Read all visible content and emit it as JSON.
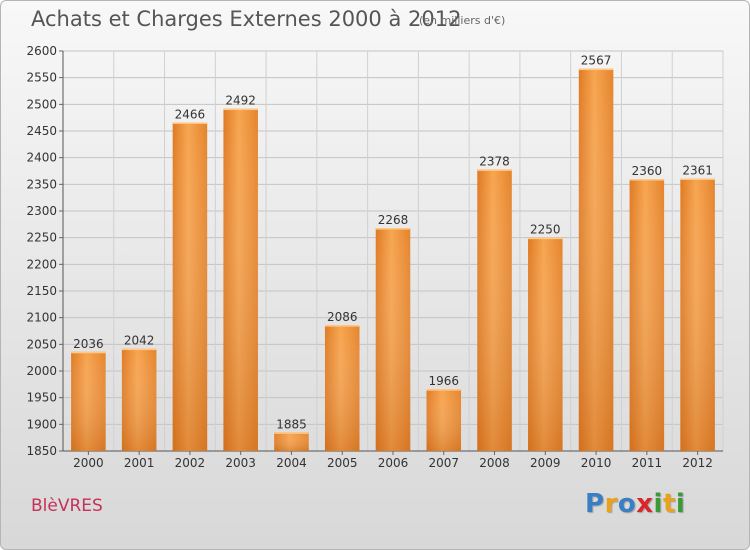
{
  "page": {
    "title": "Achats et Charges Externes 2000 à 2012",
    "subtitle": "(en milliers d'€)",
    "commune": "BlèVRES",
    "logo_letters": [
      "P",
      "r",
      "o",
      "x",
      "i",
      "t",
      "i"
    ],
    "logo_colors": [
      "#3a7fc4",
      "#e8a21c",
      "#3a7fc4",
      "#d8262c",
      "#3a9a3a",
      "#e8a21c",
      "#3a9a3a"
    ]
  },
  "chart_data": {
    "type": "bar",
    "title": "Achats et Charges Externes 2000 à 2012",
    "subtitle": "(en milliers d'€)",
    "categories": [
      "2000",
      "2001",
      "2002",
      "2003",
      "2004",
      "2005",
      "2006",
      "2007",
      "2008",
      "2009",
      "2010",
      "2011",
      "2012"
    ],
    "values": [
      2036,
      2042,
      2466,
      2492,
      1885,
      2086,
      2268,
      1966,
      2378,
      2250,
      2567,
      2360,
      2361
    ],
    "ylim": [
      1850,
      2600
    ],
    "yticks": [
      1850,
      1900,
      1950,
      2000,
      2050,
      2100,
      2150,
      2200,
      2250,
      2300,
      2350,
      2400,
      2450,
      2500,
      2550,
      2600
    ],
    "grid": true,
    "bar_color": "#f0943a",
    "data_labels": true
  }
}
